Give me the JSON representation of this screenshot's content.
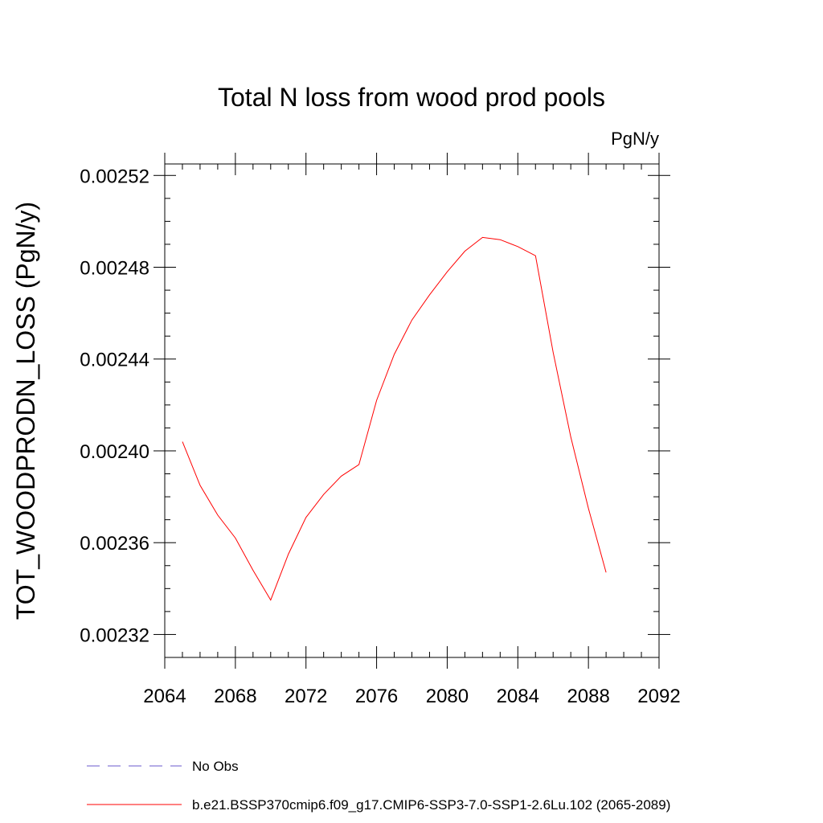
{
  "chart_data": {
    "type": "line",
    "title": "Total N loss from wood prod pools",
    "units": "PgN/y",
    "ylabel": "TOT_WOODPRODN_LOSS  (PgN/y)",
    "xlim": [
      2064,
      2092
    ],
    "ylim": [
      0.00231,
      0.002525
    ],
    "x_ticks": [
      2064,
      2068,
      2072,
      2076,
      2080,
      2084,
      2088,
      2092
    ],
    "x_tick_labels": [
      "2064",
      "2068",
      "2072",
      "2076",
      "2080",
      "2084",
      "2088",
      "2092"
    ],
    "y_ticks": [
      0.00232,
      0.00236,
      0.0024,
      0.00244,
      0.00248,
      0.00252
    ],
    "y_tick_labels": [
      "0.00232",
      "0.00236",
      "0.00240",
      "0.00244",
      "0.00248",
      "0.00252"
    ],
    "grid": false,
    "legend_position": "bottom",
    "series": [
      {
        "name": "No Obs",
        "color": "#6a5acd",
        "dash": "dashed",
        "x": [],
        "y": []
      },
      {
        "name": "b.e21.BSSP370cmip6.f09_g17.CMIP6-SSP3-7.0-SSP1-2.6Lu.102 (2065-2089)",
        "color": "#ff0000",
        "dash": "solid",
        "x": [
          2065,
          2066,
          2067,
          2068,
          2069,
          2070,
          2071,
          2072,
          2073,
          2074,
          2075,
          2076,
          2077,
          2078,
          2079,
          2080,
          2081,
          2082,
          2083,
          2084,
          2085,
          2086,
          2087,
          2088,
          2089
        ],
        "y": [
          0.002404,
          0.002385,
          0.002372,
          0.002362,
          0.002348,
          0.002335,
          0.002355,
          0.002371,
          0.002381,
          0.002389,
          0.002394,
          0.002422,
          0.002442,
          0.002457,
          0.002468,
          0.002478,
          0.002487,
          0.002493,
          0.002492,
          0.002489,
          0.002485,
          0.002443,
          0.002406,
          0.002375,
          0.002347
        ]
      }
    ]
  }
}
